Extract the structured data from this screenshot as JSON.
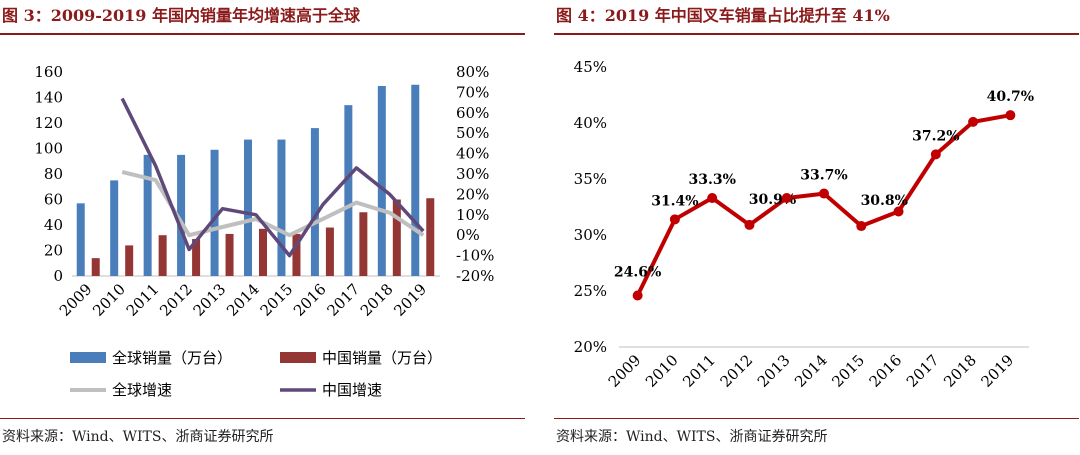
{
  "left": {
    "title": "图 3：2009-2019 年国内销量年均增速高于全球",
    "source": "资料来源：Wind、WITS、浙商证券研究所",
    "legend": [
      "全球销量（万台）",
      "中国销量（万台）",
      "全球增速",
      "中国增速"
    ]
  },
  "right": {
    "title": "图 4：2019 年中国叉车销量占比提升至 41%",
    "source": "资料来源：Wind、WITS、浙商证券研究所"
  },
  "chart_data": [
    {
      "type": "bar",
      "title": "2009-2019 年国内销量年均增速高于全球",
      "categories": [
        "2009",
        "2010",
        "2011",
        "2012",
        "2013",
        "2014",
        "2015",
        "2016",
        "2017",
        "2018",
        "2019"
      ],
      "left_axis": {
        "ylim": [
          0,
          160
        ],
        "ticks": [
          0,
          20,
          40,
          60,
          80,
          100,
          120,
          140,
          160
        ]
      },
      "right_axis": {
        "ylim": [
          -20,
          80
        ],
        "ticks": [
          "-20%",
          "-10%",
          "0%",
          "10%",
          "20%",
          "30%",
          "40%",
          "50%",
          "60%",
          "70%",
          "80%"
        ]
      },
      "series": [
        {
          "name": "全球销量（万台）",
          "kind": "bar",
          "axis": "left",
          "color": "#4a7ebb",
          "values": [
            57,
            75,
            95,
            95,
            99,
            107,
            107,
            116,
            134,
            149,
            150
          ]
        },
        {
          "name": "中国销量（万台）",
          "kind": "bar",
          "axis": "left",
          "color": "#943634",
          "values": [
            14,
            24,
            32,
            29,
            33,
            37,
            33,
            38,
            50,
            60,
            61
          ]
        },
        {
          "name": "全球增速",
          "kind": "line",
          "axis": "right",
          "color": "#bfbfbf",
          "values": [
            null,
            31,
            27,
            0,
            4,
            8,
            0,
            8,
            16,
            11,
            0
          ]
        },
        {
          "name": "中国增速",
          "kind": "line",
          "axis": "right",
          "color": "#5f497a",
          "values": [
            null,
            67,
            34,
            -7,
            13,
            10,
            -10,
            15,
            33,
            20,
            2
          ]
        }
      ]
    },
    {
      "type": "line",
      "title": "2019 年中国叉车销量占比提升至 41%",
      "categories": [
        "2009",
        "2010",
        "2011",
        "2012",
        "2013",
        "2014",
        "2015",
        "2016",
        "2017",
        "2018",
        "2019"
      ],
      "values": [
        24.6,
        31.4,
        33.3,
        30.9,
        33.3,
        33.7,
        30.8,
        32.1,
        37.2,
        40.1,
        40.7
      ],
      "data_labels": [
        "24.6%",
        "31.4%",
        "33.3%",
        "30.9%",
        "",
        "33.7%",
        "30.8%",
        "",
        "37.2%",
        "",
        "40.7%"
      ],
      "ylim": [
        20,
        45
      ],
      "yticks": [
        "20%",
        "25%",
        "30%",
        "35%",
        "40%",
        "45%"
      ],
      "color": "#c00000"
    }
  ]
}
